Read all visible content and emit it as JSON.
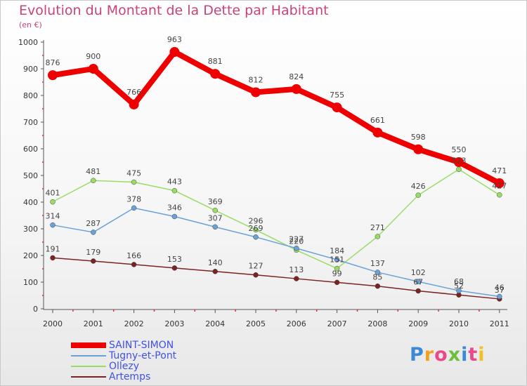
{
  "title": "Evolution du Montant de la Dette par Habitant",
  "subtitle": "(en €)",
  "logo": "Proxiti",
  "chart_data": {
    "type": "line",
    "title": "Evolution du Montant de la Dette par Habitant",
    "ylabel": "(en €)",
    "xlabel": "",
    "ylim": [
      0,
      1000
    ],
    "yticks": [
      0,
      100,
      200,
      300,
      400,
      500,
      600,
      700,
      800,
      900,
      1000
    ],
    "categories": [
      "2000",
      "2001",
      "2002",
      "2003",
      "2004",
      "2005",
      "2006",
      "2007",
      "2008",
      "2009",
      "2010",
      "2011"
    ],
    "grid": false,
    "legend": "bottom-left",
    "series": [
      {
        "name": "SAINT-SIMON",
        "color": "#ee0000",
        "width": 8,
        "marker": 7,
        "values": [
          876,
          900,
          766,
          963,
          881,
          812,
          824,
          755,
          661,
          598,
          550,
          471
        ]
      },
      {
        "name": "Tugny-et-Pont",
        "color": "#6aa2d8",
        "width": 1.5,
        "marker": 3.5,
        "values": [
          314,
          287,
          378,
          346,
          307,
          269,
          227,
          184,
          137,
          102,
          68,
          46
        ]
      },
      {
        "name": "Ollezy",
        "color": "#99dd66",
        "width": 1.5,
        "marker": 3.5,
        "values": [
          401,
          481,
          475,
          443,
          369,
          296,
          220,
          151,
          271,
          426,
          523,
          427
        ]
      },
      {
        "name": "Artemps",
        "color": "#7a2323",
        "width": 1.5,
        "marker": 3.5,
        "values": [
          191,
          179,
          166,
          153,
          140,
          127,
          113,
          99,
          85,
          67,
          52,
          37
        ]
      }
    ]
  }
}
